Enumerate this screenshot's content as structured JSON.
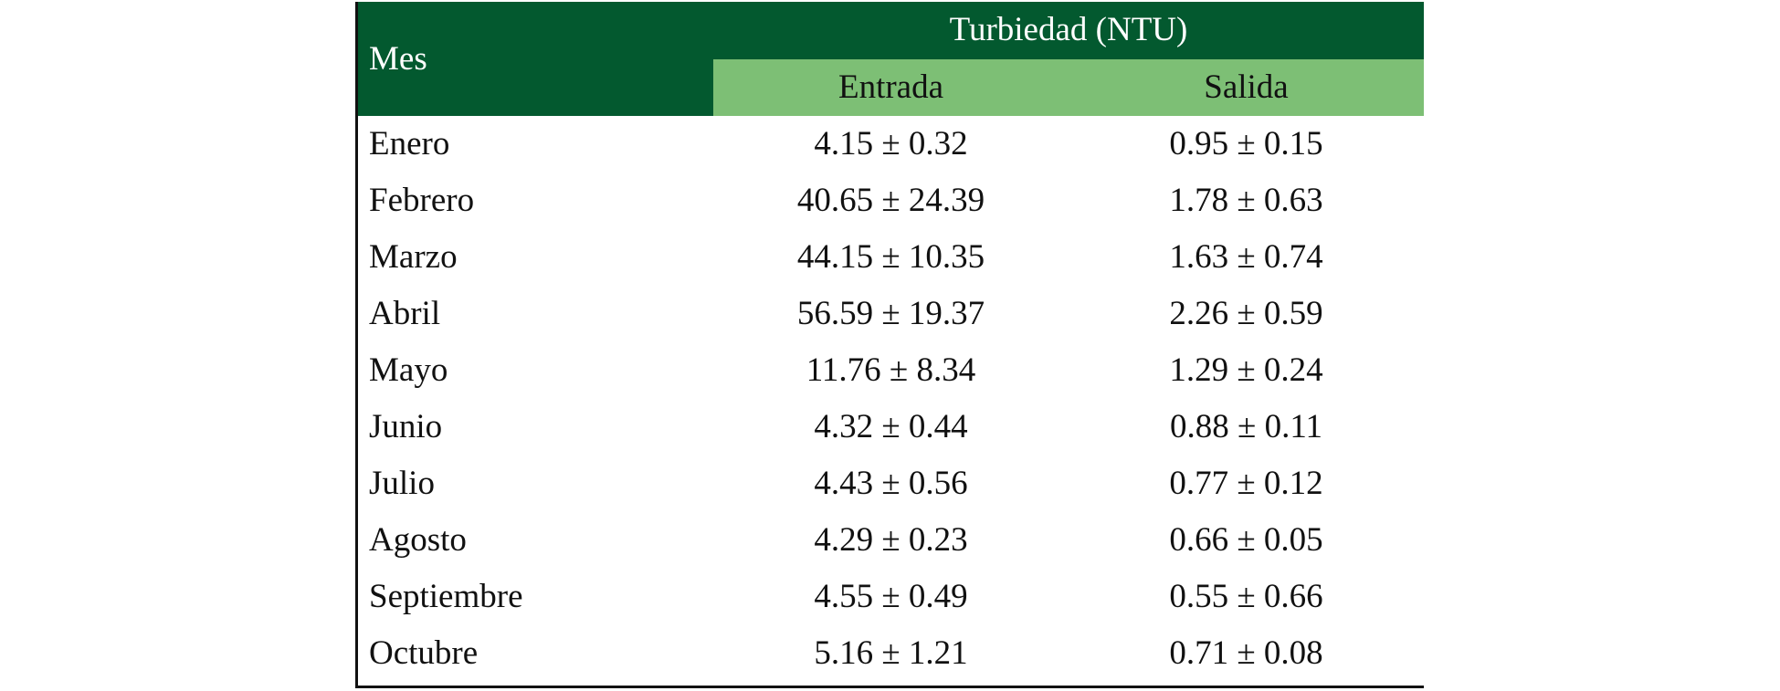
{
  "header": {
    "month": "Mes",
    "group": "Turbiedad (NTU)",
    "columns": [
      "Entrada",
      "Salida"
    ]
  },
  "table": {
    "rows": [
      [
        "Enero",
        "4.15 ± 0.32",
        "0.95 ± 0.15"
      ],
      [
        "Febrero",
        "40.65 ± 24.39",
        "1.78 ± 0.63"
      ],
      [
        "Marzo",
        "44.15 ± 10.35",
        "1.63 ± 0.74"
      ],
      [
        "Abril",
        "56.59 ± 19.37",
        "2.26 ± 0.59"
      ],
      [
        "Mayo",
        "11.76 ± 8.34",
        "1.29 ± 0.24"
      ],
      [
        "Junio",
        "4.32 ± 0.44",
        "0.88 ± 0.11"
      ],
      [
        "Julio",
        "4.43 ± 0.56",
        "0.77 ± 0.12"
      ],
      [
        "Agosto",
        "4.29 ± 0.23",
        "0.66 ± 0.05"
      ],
      [
        "Septiembre",
        "4.55 ± 0.49",
        "0.55 ± 0.66"
      ],
      [
        "Octubre",
        "5.16 ± 1.21",
        "0.71 ± 0.08"
      ]
    ]
  }
}
